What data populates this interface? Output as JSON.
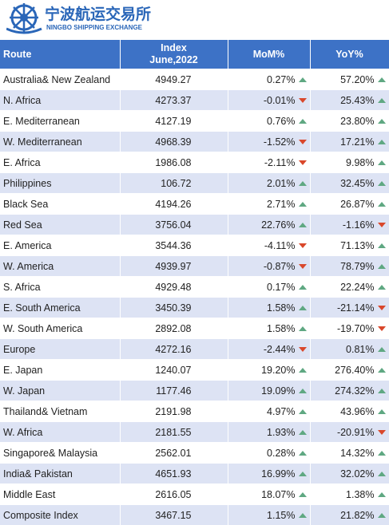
{
  "header": {
    "title": "宁波航运交易所",
    "subtitle": "NINGBO SHIPPING EXCHANGE"
  },
  "table": {
    "columns": [
      "Route",
      "Index",
      "June,2022",
      "MoM%",
      "YoY%"
    ],
    "rows": [
      [
        "Australia& New Zealand",
        "4949.27",
        "0.27%",
        "57.20%"
      ],
      [
        "N. Africa",
        "4273.37",
        "-0.01%",
        "25.43%"
      ],
      [
        "E. Mediterranean",
        "4127.19",
        "0.76%",
        "23.80%"
      ],
      [
        "W. Mediterranean",
        "4968.39",
        "-1.52%",
        "17.21%"
      ],
      [
        "E. Africa",
        "1986.08",
        "-2.11%",
        "9.98%"
      ],
      [
        "Philippines",
        "106.72",
        "2.01%",
        "32.45%"
      ],
      [
        "Black Sea",
        "4194.26",
        "2.71%",
        "26.87%"
      ],
      [
        "Red Sea",
        "3756.04",
        "22.76%",
        "-1.16%"
      ],
      [
        "E. America",
        "3544.36",
        "-4.11%",
        "71.13%"
      ],
      [
        "W. America",
        "4939.97",
        "-0.87%",
        "78.79%"
      ],
      [
        "S. Africa",
        "4929.48",
        "0.17%",
        "22.24%"
      ],
      [
        "E. South America",
        "3450.39",
        "1.58%",
        "-21.14%"
      ],
      [
        "W. South America",
        "2892.08",
        "1.58%",
        "-19.70%"
      ],
      [
        "Europe",
        "4272.16",
        "-2.44%",
        "0.81%"
      ],
      [
        "E. Japan",
        "1240.07",
        "19.20%",
        "276.40%"
      ],
      [
        "W. Japan",
        "1177.46",
        "19.09%",
        "274.32%"
      ],
      [
        "Thailand& Vietnam",
        "2191.98",
        "4.97%",
        "43.96%"
      ],
      [
        "W. Africa",
        "2181.55",
        "1.93%",
        "-20.91%"
      ],
      [
        "Singapore& Malaysia",
        "2562.01",
        "0.28%",
        "14.32%"
      ],
      [
        "India& Pakistan",
        "4651.93",
        "16.99%",
        "32.02%"
      ],
      [
        "Middle East",
        "2616.05",
        "18.07%",
        "1.38%"
      ],
      [
        "Composite Index",
        "3467.15",
        "1.15%",
        "21.82%"
      ]
    ]
  }
}
